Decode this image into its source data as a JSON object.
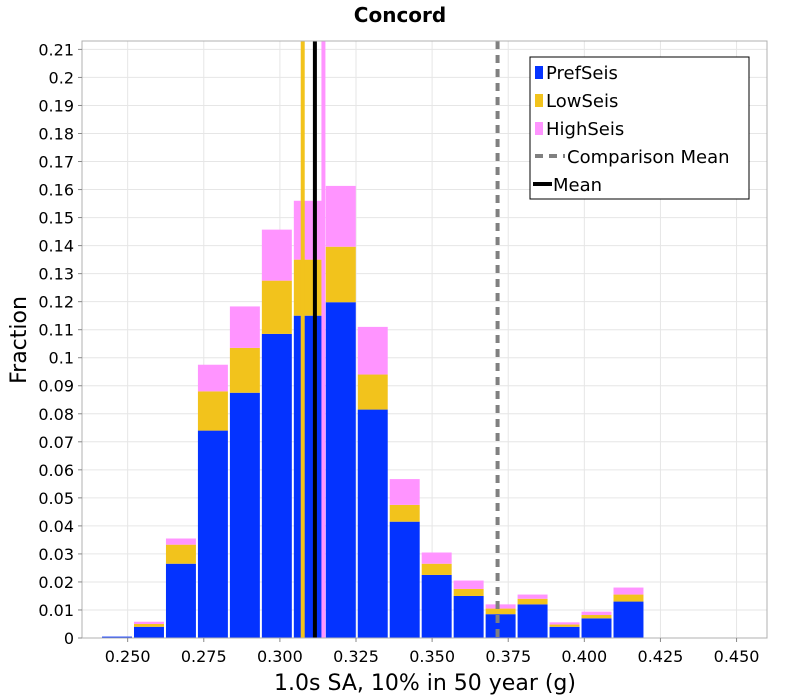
{
  "chart_data": {
    "type": "bar",
    "stacked": true,
    "title": "Concord",
    "xlabel": "1.0s SA, 10% in 50 year (g)",
    "ylabel": "Fraction",
    "xlim": [
      0.235,
      0.46
    ],
    "ylim": [
      0,
      0.213
    ],
    "xticks": [
      "0.250",
      "0.275",
      "0.300",
      "0.325",
      "0.350",
      "0.375",
      "0.400",
      "0.425",
      "0.450"
    ],
    "yticks": [
      "0",
      "0.01",
      "0.02",
      "0.03",
      "0.04",
      "0.05",
      "0.06",
      "0.07",
      "0.08",
      "0.09",
      "0.1",
      "0.11",
      "0.12",
      "0.13",
      "0.14",
      "0.15",
      "0.16",
      "0.17",
      "0.18",
      "0.19",
      "0.2",
      "0.21"
    ],
    "grid": true,
    "bin_width": 0.0105,
    "x": [
      0.2465,
      0.257,
      0.2675,
      0.278,
      0.2885,
      0.299,
      0.3095,
      0.32,
      0.3305,
      0.341,
      0.3515,
      0.362,
      0.3725,
      0.383,
      0.3935,
      0.404,
      0.4145
    ],
    "series": [
      {
        "name": "PrefSeis",
        "color": "#0433ff",
        "values": [
          0.0005,
          0.004,
          0.0265,
          0.074,
          0.0875,
          0.1085,
          0.115,
          0.1198,
          0.0815,
          0.0415,
          0.0225,
          0.015,
          0.0085,
          0.012,
          0.004,
          0.007,
          0.013
        ]
      },
      {
        "name": "LowSeis",
        "color": "#f2c31c",
        "values": [
          0.0,
          0.001,
          0.0068,
          0.014,
          0.016,
          0.019,
          0.02,
          0.0198,
          0.0125,
          0.006,
          0.004,
          0.0025,
          0.002,
          0.002,
          0.0008,
          0.0012,
          0.0025
        ]
      },
      {
        "name": "HighSeis",
        "color": "#ff94ff",
        "values": [
          0.0,
          0.0008,
          0.0022,
          0.0095,
          0.0148,
          0.0182,
          0.021,
          0.0217,
          0.017,
          0.0092,
          0.004,
          0.003,
          0.0015,
          0.0015,
          0.0008,
          0.0012,
          0.0025
        ]
      }
    ],
    "vertical_lines": [
      {
        "name": "LowSeis",
        "x": 0.3075,
        "color": "#f2c31c",
        "style": "solid"
      },
      {
        "name": "HighSeis",
        "x": 0.3143,
        "color": "#ff94ff",
        "style": "solid"
      },
      {
        "name": "Mean",
        "x": 0.3115,
        "color": "#000000",
        "style": "solid"
      },
      {
        "name": "Comparison Mean",
        "x": 0.3715,
        "color": "#808080",
        "style": "dashed"
      }
    ],
    "legend": {
      "position": "top-right",
      "entries": [
        {
          "label": "PrefSeis",
          "color": "#0433ff",
          "marker": "box"
        },
        {
          "label": "LowSeis",
          "color": "#f2c31c",
          "marker": "box"
        },
        {
          "label": "HighSeis",
          "color": "#ff94ff",
          "marker": "box"
        },
        {
          "label": "Comparison Mean",
          "color": "#808080",
          "marker": "dashed-line"
        },
        {
          "label": "Mean",
          "color": "#000000",
          "marker": "line"
        }
      ]
    }
  }
}
